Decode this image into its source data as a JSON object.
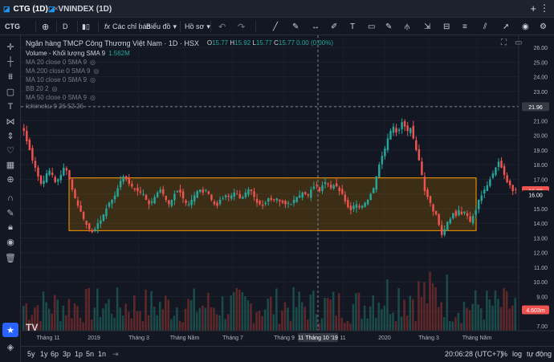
{
  "tabs": [
    {
      "label": "CTG (1D)",
      "active": true
    },
    {
      "label": "VNINDEX (1D)",
      "active": false
    }
  ],
  "tab_add": "+",
  "tab_menu": "⋮",
  "toolbar": {
    "symbol": "CTG",
    "interval": "D",
    "indicators": "Các chỉ báo",
    "chart_type": "Biểu đồ",
    "profile": "Hồ sơ"
  },
  "legend": {
    "title": "Ngân hàng TMCP Công Thương Việt Nam · 1D · HSX",
    "ohlc": [
      {
        "k": "O",
        "v": "15.77"
      },
      {
        "k": "H",
        "v": "15.92"
      },
      {
        "k": "L",
        "v": "15.77"
      },
      {
        "k": "C",
        "v": "15.77"
      }
    ],
    "change": "0.00 (0.00%)",
    "volume_label": "Volume - Khối lượng SMA 9",
    "volume_value": "1.562M",
    "indicators": [
      "MA 20 close 0 SMA 9",
      "MA 200 close 0 SMA 9",
      "MA 10 close 0 SMA 9",
      "BB 20 2",
      "MA 50 close 0 SMA 9",
      "Ichimoku 9 26 52 26"
    ]
  },
  "price_labels": {
    "crosshair": "21.96",
    "last": "16.23",
    "last2": "16.00",
    "volume": "4.603m"
  },
  "bottom": {
    "ranges": [
      "5y",
      "1y",
      "6p",
      "3p",
      "1p",
      "5n",
      "1n"
    ],
    "time": "20:06:28 (UTC+7)",
    "percent": "%",
    "log": "log",
    "auto": "tự động"
  },
  "colors": {
    "up": "#26a69a",
    "down": "#ef5350",
    "rect_fill": "#8a5a00",
    "rect_border": "#ff9800",
    "bg": "#131722"
  },
  "chart_data": {
    "type": "candlestick",
    "x_labels": [
      "Tháng 11",
      "2019",
      "Tháng 3",
      "Tháng Năm",
      "Tháng 7",
      "Tháng 9",
      "11 Tháng 10 '19",
      "11",
      "2020",
      "Tháng 3",
      "Tháng Năm"
    ],
    "y_ticks": [
      7.0,
      8.0,
      9.0,
      10.0,
      11.0,
      12.0,
      13.0,
      14.0,
      15.0,
      16.0,
      17.0,
      18.0,
      19.0,
      20.0,
      21.0,
      22.0,
      23.0,
      24.0,
      25.0,
      26.0
    ],
    "y_tick_labels": [
      "7.00",
      "8.00",
      "9.00",
      "10.00",
      "11.00",
      "12.00",
      "13.00",
      "14.00",
      "15.00",
      "16.00",
      "17.00",
      "18.00",
      "19.00",
      "20.00",
      "21.00",
      "22.00",
      "23.00",
      "24.00",
      "25.00",
      "26.00"
    ],
    "ylim": [
      7.0,
      26.5
    ],
    "crosshair_price": 21.96,
    "range_box": {
      "y_low": 13.5,
      "y_high": 17.1
    },
    "close_series": [
      20.3,
      19.6,
      19.0,
      18.3,
      17.8,
      17.2,
      16.7,
      16.9,
      17.4,
      17.6,
      17.3,
      16.8,
      17.0,
      17.3,
      17.8,
      17.6,
      17.0,
      16.3,
      15.7,
      15.2,
      14.8,
      14.3,
      13.9,
      13.6,
      13.4,
      13.6,
      14.0,
      14.2,
      14.6,
      15.0,
      15.4,
      15.6,
      15.9,
      16.4,
      16.9,
      17.2,
      17.0,
      16.7,
      16.5,
      16.3,
      16.2,
      16.1,
      16.0,
      15.6,
      15.3,
      15.5,
      15.8,
      16.1,
      16.3,
      16.0,
      15.6,
      15.3,
      15.6,
      16.0,
      16.2,
      16.1,
      15.7,
      15.4,
      15.3,
      15.6,
      15.9,
      16.2,
      16.3,
      16.1,
      16.3,
      16.0,
      15.6,
      15.3,
      15.2,
      15.6,
      15.7,
      15.9,
      15.8,
      15.9,
      16.1,
      16.0,
      15.7,
      15.8,
      16.1,
      16.3,
      16.2,
      15.8,
      15.4,
      15.3,
      15.2,
      15.4,
      15.7,
      15.6,
      15.6,
      15.7,
      15.5,
      15.4,
      15.3,
      15.4,
      15.3,
      15.6,
      15.8,
      15.9,
      16.1,
      16.0,
      15.9,
      16.3,
      16.5,
      16.6,
      16.2,
      16.6,
      16.8,
      16.7,
      16.4,
      16.6,
      16.5,
      16.2,
      16.0,
      15.5,
      15.1,
      14.9,
      15.2,
      15.3,
      15.1,
      15.2,
      15.4,
      15.6,
      16.0,
      16.4,
      17.2,
      18.0,
      18.6,
      19.1,
      19.8,
      20.3,
      20.6,
      20.2,
      20.4,
      20.9,
      20.6,
      20.3,
      20.5,
      19.8,
      19.0,
      18.3,
      17.3,
      16.2,
      15.8,
      15.4,
      14.8,
      14.6,
      13.9,
      13.2,
      13.6,
      14.1,
      14.3,
      14.7,
      14.5,
      14.9,
      14.6,
      14.8,
      14.5,
      14.1,
      14.5,
      14.9,
      15.6,
      15.9,
      16.3,
      16.6,
      17.0,
      17.4,
      17.8,
      18.2,
      17.8,
      17.3,
      16.8,
      16.6,
      16.2,
      16.3
    ],
    "volume_ylim": [
      0,
      12
    ]
  }
}
